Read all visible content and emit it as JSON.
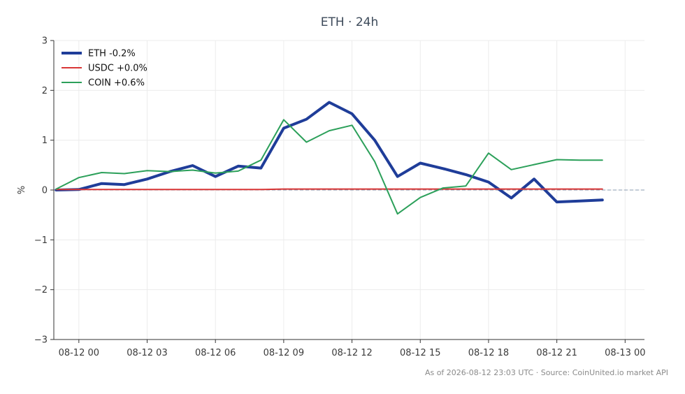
{
  "chart_data": {
    "type": "line",
    "title": "ETH · 24h",
    "xlabel": "",
    "ylabel": "%",
    "ylim": [
      -3,
      3
    ],
    "yticks": [
      -3,
      -2,
      -1,
      0,
      1,
      2,
      3
    ],
    "ytick_labels": [
      "−3",
      "−2",
      "−1",
      "0",
      "1",
      "2",
      "3"
    ],
    "xlim": [
      -1.1,
      24.85
    ],
    "xticks": [
      0,
      3,
      6,
      9,
      12,
      15,
      18,
      21,
      24
    ],
    "xtick_labels": [
      "08-12 00",
      "08-12 03",
      "08-12 06",
      "08-12 09",
      "08-12 12",
      "08-12 15",
      "08-12 18",
      "08-12 21",
      "08-13 00"
    ],
    "grid": true,
    "legend_position": "top-left",
    "x": [
      -1,
      0,
      1,
      2,
      3,
      4,
      5,
      6,
      7,
      8,
      9,
      10,
      11,
      12,
      13,
      14,
      15,
      16,
      17,
      18,
      19,
      20,
      21,
      22,
      23
    ],
    "series": [
      {
        "name": "ETH -0.2%",
        "color": "#1f3d99",
        "values": [
          0.0,
          0.01,
          0.13,
          0.11,
          0.22,
          0.37,
          0.49,
          0.27,
          0.48,
          0.44,
          1.24,
          1.42,
          1.76,
          1.53,
          1.0,
          0.27,
          0.54,
          0.43,
          0.31,
          0.16,
          -0.16,
          0.22,
          -0.24,
          -0.22,
          -0.2
        ]
      },
      {
        "name": "USDC +0.0%",
        "color": "#d93636",
        "values": [
          0.01,
          0.01,
          0.01,
          0.01,
          0.01,
          0.01,
          0.01,
          0.01,
          0.01,
          0.01,
          0.02,
          0.02,
          0.02,
          0.02,
          0.02,
          0.02,
          0.02,
          0.02,
          0.02,
          0.02,
          0.02,
          0.02,
          0.02,
          0.02,
          0.02
        ]
      },
      {
        "name": "COIN +0.6%",
        "color": "#2ca05a",
        "values": [
          0.02,
          0.25,
          0.35,
          0.33,
          0.39,
          0.37,
          0.4,
          0.34,
          0.38,
          0.6,
          1.41,
          0.96,
          1.19,
          1.3,
          0.57,
          -0.48,
          -0.15,
          0.04,
          0.08,
          0.74,
          0.41,
          0.51,
          0.61,
          0.6,
          0.6
        ]
      }
    ],
    "footer": "As of 2026-08-12 23:03 UTC · Source: CoinUnited.io market API"
  }
}
